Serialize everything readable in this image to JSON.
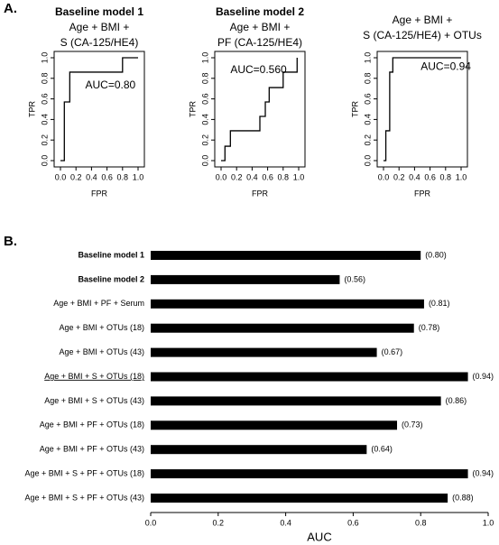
{
  "panel_labels": [
    "A.",
    "B."
  ],
  "chart_data": [
    {
      "type": "line",
      "title": "Baseline model 1",
      "subtitle": [
        "Age + BMI +",
        "S (CA-125/HE4)"
      ],
      "annotation": "AUC=0.80",
      "xlabel": "FPR",
      "ylabel": "TPR",
      "color": "#000000",
      "x": [
        0,
        0.05,
        0.05,
        0.12,
        0.12,
        0.8,
        0.8,
        1.0
      ],
      "values": [
        0,
        0,
        0.57,
        0.57,
        0.86,
        0.86,
        1.0,
        1.0
      ],
      "xlim": [
        0,
        1
      ],
      "ylim": [
        0,
        1
      ],
      "xticks": [
        {
          "value": 0,
          "label": "0.0"
        },
        0.2,
        0.4,
        0.6,
        0.8,
        {
          "value": 1,
          "label": "1.0"
        }
      ],
      "yticks": [
        {
          "value": 0,
          "label": "0.0"
        },
        0.2,
        0.4,
        0.6,
        0.8,
        {
          "value": 1,
          "label": "1.0"
        }
      ]
    },
    {
      "type": "line",
      "title": "Baseline model 2",
      "subtitle": [
        "Age + BMI +",
        "PF (CA-125/HE4)"
      ],
      "annotation": "AUC=0.560",
      "xlabel": "FPR",
      "ylabel": "TPR",
      "color": "#000000",
      "x": [
        0,
        0.05,
        0.05,
        0.12,
        0.12,
        0.5,
        0.5,
        0.57,
        0.57,
        0.62,
        0.62,
        0.8,
        0.8,
        0.98,
        0.98
      ],
      "values": [
        0,
        0,
        0.14,
        0.14,
        0.29,
        0.29,
        0.43,
        0.43,
        0.57,
        0.57,
        0.71,
        0.71,
        0.86,
        0.86,
        1.0
      ],
      "xlim": [
        0,
        1
      ],
      "ylim": [
        0,
        1
      ],
      "xticks": [
        {
          "value": 0,
          "label": "0.0"
        },
        0.2,
        0.4,
        0.6,
        0.8,
        {
          "value": 1,
          "label": "1.0"
        }
      ],
      "yticks": [
        {
          "value": 0,
          "label": "0.0"
        },
        0.2,
        0.4,
        0.6,
        0.8,
        {
          "value": 1,
          "label": "1.0"
        }
      ]
    },
    {
      "type": "line",
      "subtitle": [
        "Age + BMI +",
        "S (CA-125/HE4) + OTUs"
      ],
      "annotation": "AUC=0.94",
      "xlabel": "FPR",
      "ylabel": "TPR",
      "color": "#000000",
      "x": [
        0,
        0.03,
        0.03,
        0.08,
        0.08,
        0.12,
        0.12,
        1.0
      ],
      "values": [
        0,
        0,
        0.29,
        0.29,
        0.86,
        0.86,
        1.0,
        1.0
      ],
      "xlim": [
        0,
        1
      ],
      "ylim": [
        0,
        1
      ],
      "xticks": [
        {
          "value": 0,
          "label": "0.0"
        },
        0.2,
        0.4,
        0.6,
        0.8,
        {
          "value": 1,
          "label": "1.0"
        }
      ],
      "yticks": [
        {
          "value": 0,
          "label": "0.0"
        },
        0.2,
        0.4,
        0.6,
        0.8,
        {
          "value": 1,
          "label": "1.0"
        }
      ]
    },
    {
      "type": "bar",
      "orientation": "horizontal",
      "xlabel": "AUC",
      "color": "#000000",
      "categories": [
        "Baseline model 1",
        "Baseline model 2",
        "Age + BMI + PF + Serum",
        "Age + BMI + OTUs (18)",
        "Age + BMI + OTUs (43)",
        "Age + BMI + S + OTUs (18)",
        "Age + BMI + S + OTUs (43)",
        "Age + BMI + PF + OTUs (18)",
        "Age + BMI + PF + OTUs (43)",
        "Age + BMI + S + PF + OTUs (18)",
        "Age + BMI + S + PF + OTUs (43)"
      ],
      "bold_categories": [
        0,
        1
      ],
      "underlined_categories": [
        5
      ],
      "values": [
        0.8,
        0.56,
        0.81,
        0.78,
        0.67,
        0.94,
        0.86,
        0.73,
        0.64,
        0.94,
        0.88
      ],
      "value_labels": [
        "(0.80)",
        "(0.56)",
        "(0.81)",
        "(0.78)",
        "(0.67)",
        "(0.94)",
        "(0.86)",
        "(0.73)",
        "(0.64)",
        "(0.94)",
        "(0.88)"
      ],
      "xlim": [
        0,
        1
      ],
      "xticks": [
        {
          "value": 0,
          "label": "0.0"
        },
        0.2,
        0.4,
        0.6,
        0.8,
        {
          "value": 1,
          "label": "1.0"
        }
      ]
    }
  ]
}
